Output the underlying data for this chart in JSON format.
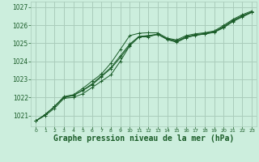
{
  "background_color": "#cceedd",
  "grid_color": "#aaccbb",
  "line_color": "#1a5c28",
  "xlabel": "Graphe pression niveau de la mer (hPa)",
  "xlabel_fontsize": 7.0,
  "ylim": [
    1020.4,
    1027.3
  ],
  "xlim": [
    -0.5,
    23.5
  ],
  "yticks": [
    1021,
    1022,
    1023,
    1024,
    1025,
    1026,
    1027
  ],
  "xticks": [
    0,
    1,
    2,
    3,
    4,
    5,
    6,
    7,
    8,
    9,
    10,
    11,
    12,
    13,
    14,
    15,
    16,
    17,
    18,
    19,
    20,
    21,
    22,
    23
  ],
  "series": [
    [
      1020.7,
      1021.0,
      1021.4,
      1021.95,
      1022.0,
      1022.2,
      1022.55,
      1022.9,
      1023.25,
      1024.0,
      1024.85,
      1025.35,
      1025.35,
      1025.5,
      1025.2,
      1025.05,
      1025.3,
      1025.45,
      1025.5,
      1025.6,
      1025.85,
      1026.2,
      1026.45,
      1026.7
    ],
    [
      1020.7,
      1021.05,
      1021.5,
      1022.0,
      1022.1,
      1022.4,
      1022.75,
      1023.2,
      1023.65,
      1024.3,
      1024.95,
      1025.38,
      1025.42,
      1025.48,
      1025.22,
      1025.1,
      1025.32,
      1025.43,
      1025.52,
      1025.62,
      1025.88,
      1026.22,
      1026.5,
      1026.72
    ],
    [
      1020.7,
      1021.05,
      1021.5,
      1022.05,
      1022.15,
      1022.5,
      1022.9,
      1023.3,
      1023.9,
      1024.65,
      1025.42,
      1025.55,
      1025.58,
      1025.57,
      1025.28,
      1025.18,
      1025.42,
      1025.52,
      1025.58,
      1025.68,
      1025.98,
      1026.32,
      1026.58,
      1026.78
    ],
    [
      1020.7,
      1021.05,
      1021.5,
      1022.0,
      1022.12,
      1022.38,
      1022.7,
      1023.15,
      1023.6,
      1024.2,
      1024.88,
      1025.35,
      1025.42,
      1025.5,
      1025.25,
      1025.12,
      1025.36,
      1025.47,
      1025.55,
      1025.63,
      1025.93,
      1026.27,
      1026.52,
      1026.73
    ]
  ]
}
